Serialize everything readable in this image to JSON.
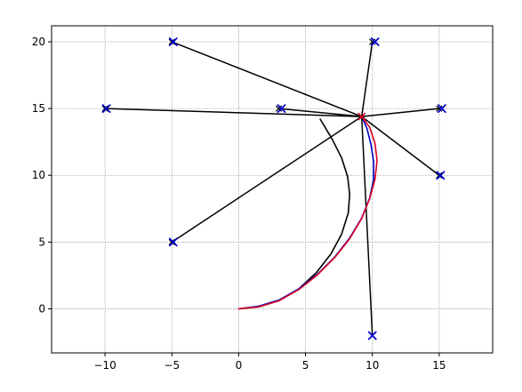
{
  "chart_data": {
    "type": "line",
    "title": "",
    "xlabel": "",
    "ylabel": "",
    "xlim": [
      -14,
      19
    ],
    "ylim": [
      -3.3,
      21.2
    ],
    "grid": true,
    "x_ticks": [
      -10,
      -5,
      0,
      5,
      10,
      15
    ],
    "y_ticks": [
      0,
      5,
      10,
      15,
      20
    ],
    "x_tick_labels": [
      "−10",
      "−5",
      "0",
      "5",
      "10",
      "15"
    ],
    "y_tick_labels": [
      "0",
      "5",
      "10",
      "15",
      "20"
    ],
    "hub": [
      9.2,
      14.4
    ],
    "spokes_color": "#000000",
    "marker_color": "#0000cc",
    "markers": [
      {
        "x": -5,
        "y": 20,
        "x_observed": -4.9
      },
      {
        "x": 10,
        "y": 20,
        "x_observed": 10.2
      },
      {
        "x": -10,
        "y": 15,
        "x_observed": -9.9
      },
      {
        "x": 3,
        "y": 15,
        "x_observed": 3.2
      },
      {
        "x": 15,
        "y": 15,
        "x_observed": 15.2
      },
      {
        "x": 15,
        "y": 10,
        "x_observed": 15.1
      },
      {
        "x": -5,
        "y": 5,
        "x_observed": -4.9
      },
      {
        "x": 10,
        "y": -2,
        "x_observed": 10.0
      }
    ],
    "series": [
      {
        "color": "#000000",
        "x": [
          0.0,
          1.5,
          3.0,
          4.5,
          5.8,
          6.9,
          7.7,
          8.2,
          8.3,
          8.15,
          7.7,
          7.0,
          6.1
        ],
        "y": [
          0.0,
          0.15,
          0.6,
          1.5,
          2.7,
          4.1,
          5.6,
          7.2,
          8.6,
          9.9,
          11.3,
          12.7,
          14.2
        ]
      },
      {
        "color": "#0000cc",
        "x": [
          0.0,
          1.5,
          3.0,
          4.5,
          5.9,
          7.2,
          8.3,
          9.2,
          9.8,
          10.1,
          10.1,
          9.9,
          9.6,
          9.2
        ],
        "y": [
          0.0,
          0.2,
          0.65,
          1.5,
          2.6,
          3.9,
          5.3,
          6.8,
          8.3,
          9.7,
          11.0,
          12.3,
          13.5,
          14.4
        ]
      },
      {
        "color": "#dd0022",
        "x": [
          0.0,
          1.5,
          3.0,
          4.5,
          5.9,
          7.2,
          8.3,
          9.2,
          9.8,
          10.2,
          10.35,
          10.2,
          9.8,
          9.2
        ],
        "y": [
          0.0,
          0.15,
          0.6,
          1.45,
          2.55,
          3.85,
          5.25,
          6.75,
          8.25,
          9.7,
          11.1,
          12.4,
          13.6,
          14.4
        ]
      }
    ]
  }
}
